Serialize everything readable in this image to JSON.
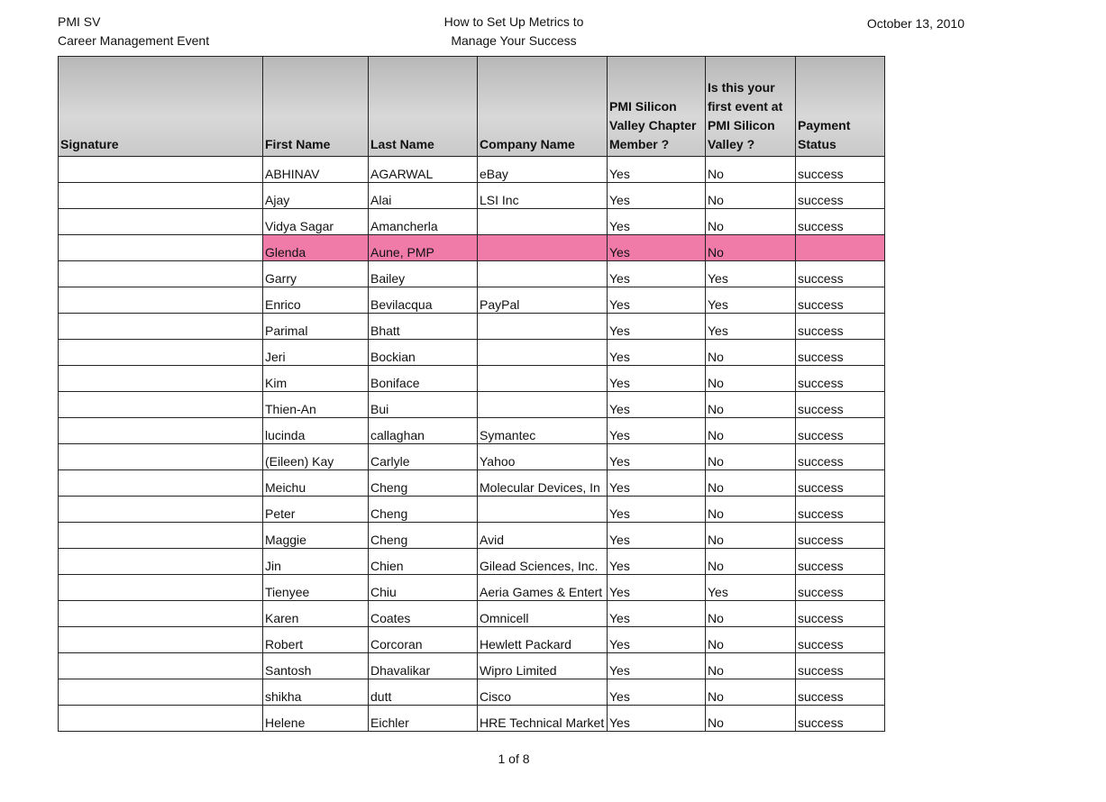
{
  "header": {
    "org": "PMI SV",
    "event": "Career Management Event",
    "title_line1": "How to Set Up Metrics to",
    "title_line2": "Manage Your Success",
    "date": "October 13, 2010"
  },
  "table": {
    "columns": [
      "Signature",
      "First Name",
      "Last Name",
      "Company Name",
      "PMI Silicon Valley Chapter Member ?",
      "Is this your first event at PMI Silicon Valley ?",
      "Payment Status"
    ],
    "rows": [
      {
        "first": "ABHINAV",
        "last": "AGARWAL",
        "company": "eBay",
        "member": "Yes",
        "first_event": "No",
        "payment": "success"
      },
      {
        "first": "Ajay",
        "last": "Alai",
        "company": "LSI Inc",
        "member": "Yes",
        "first_event": "No",
        "payment": "success"
      },
      {
        "first": "Vidya Sagar",
        "last": "Amancherla",
        "member": "Yes",
        "first_event": "No",
        "payment": "success"
      },
      {
        "first": "Glenda",
        "last": "Aune, PMP",
        "member": "Yes",
        "first_event": "No",
        "highlight": true
      },
      {
        "first": "Garry",
        "last": "Bailey",
        "member": "Yes",
        "first_event": "Yes",
        "payment": "success"
      },
      {
        "first": "Enrico",
        "last": "Bevilacqua",
        "company": "PayPal",
        "member": "Yes",
        "first_event": "Yes",
        "payment": "success"
      },
      {
        "first": "Parimal",
        "last": "Bhatt",
        "member": "Yes",
        "first_event": "Yes",
        "payment": "success"
      },
      {
        "first": "Jeri",
        "last": "Bockian",
        "member": "Yes",
        "first_event": "No",
        "payment": "success"
      },
      {
        "first": "Kim",
        "last": "Boniface",
        "member": "Yes",
        "first_event": "No",
        "payment": "success"
      },
      {
        "first": "Thien-An",
        "last": "Bui",
        "member": "Yes",
        "first_event": "No",
        "payment": "success"
      },
      {
        "first": "lucinda",
        "last": "callaghan",
        "company": "Symantec",
        "member": "Yes",
        "first_event": "No",
        "payment": "success"
      },
      {
        "first": "(Eileen) Kay",
        "last": "Carlyle",
        "company": "Yahoo",
        "member": "Yes",
        "first_event": "No",
        "payment": "success"
      },
      {
        "first": "Meichu",
        "last": "Cheng",
        "company": "Molecular Devices, In",
        "member": "Yes",
        "first_event": "No",
        "payment": "success"
      },
      {
        "first": "Peter",
        "last": "Cheng",
        "member": "Yes",
        "first_event": "No",
        "payment": "success"
      },
      {
        "first": "Maggie",
        "last": "Cheng",
        "company": "Avid",
        "member": "Yes",
        "first_event": "No",
        "payment": "success"
      },
      {
        "first": "Jin",
        "last": "Chien",
        "company": "Gilead Sciences, Inc.",
        "member": "Yes",
        "first_event": "No",
        "payment": "success"
      },
      {
        "first": "Tienyee",
        "last": "Chiu",
        "company": "Aeria Games & Entert",
        "member": "Yes",
        "first_event": "Yes",
        "payment": "success"
      },
      {
        "first": "Karen",
        "last": "Coates",
        "company": "Omnicell",
        "member": "Yes",
        "first_event": "No",
        "payment": "success"
      },
      {
        "first": "Robert",
        "last": "Corcoran",
        "company": "Hewlett Packard",
        "member": "Yes",
        "first_event": "No",
        "payment": "success"
      },
      {
        "first": "Santosh",
        "last": "Dhavalikar",
        "company": "Wipro Limited",
        "member": "Yes",
        "first_event": "No",
        "payment": "success"
      },
      {
        "first": "shikha",
        "last": "dutt",
        "company": "Cisco",
        "member": "Yes",
        "first_event": "No",
        "payment": "success"
      },
      {
        "first": "Helene",
        "last": "Eichler",
        "company": "HRE Technical Market",
        "member": "Yes",
        "first_event": "No",
        "payment": "success"
      }
    ]
  },
  "footer": {
    "page": "1 of 8"
  }
}
